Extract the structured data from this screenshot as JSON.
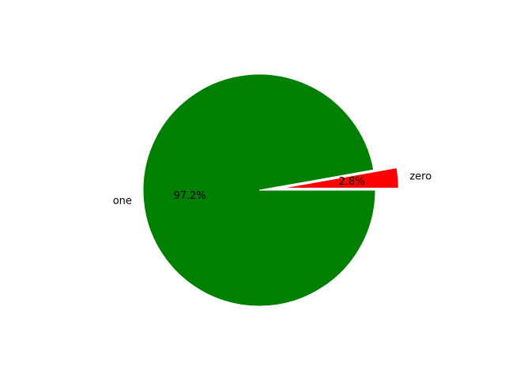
{
  "chart_data": {
    "type": "pie",
    "slices": [
      {
        "label": "zero",
        "value": 2.8,
        "pct_text": "2.8%",
        "color": "#ff0000",
        "exploded": true
      },
      {
        "label": "one",
        "value": 97.2,
        "pct_text": "97.2%",
        "color": "#008000",
        "exploded": false
      }
    ]
  }
}
